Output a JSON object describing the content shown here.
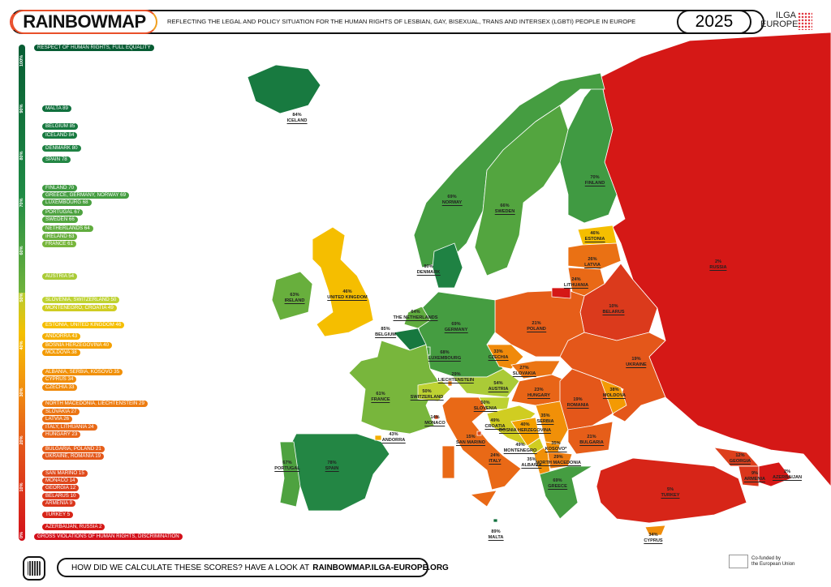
{
  "header": {
    "logo": "RAINBOWMAP",
    "tagline": "REFLECTING THE LEGAL AND POLICY SITUATION FOR THE HUMAN RIGHTS OF LESBIAN, GAY, BISEXUAL, TRANS AND INTERSEX (LGBTI) PEOPLE IN EUROPE",
    "year": "2025",
    "org_line1": "ILGA",
    "org_line2": "EUROPE"
  },
  "scale": {
    "ticks": [
      "100%",
      "90%",
      "80%",
      "70%",
      "60%",
      "50%",
      "40%",
      "30%",
      "20%",
      "10%",
      "0%"
    ],
    "top_label": "RESPECT OF HUMAN RIGHTS, FULL EQUALITY",
    "bottom_label": "GROSS VIOLATIONS OF HUMAN RIGHTS, DISCRIMINATION",
    "colors": {
      "top": "#075c33",
      "bottom": "#d3101a"
    }
  },
  "ranking": [
    {
      "label": "MALTA 89",
      "score": 89
    },
    {
      "label": "BELGIUM 85",
      "score": 85
    },
    {
      "label": "ICELAND 84",
      "score": 84
    },
    {
      "label": "DENMARK 80",
      "score": 80
    },
    {
      "label": "SPAIN 78",
      "score": 78
    },
    {
      "label": "FINLAND 70",
      "score": 70
    },
    {
      "label": "GREECE, GERMANY, NORWAY 69",
      "score": 69
    },
    {
      "label": "LUXEMBOURG 68",
      "score": 68
    },
    {
      "label": "PORTUGAL 67",
      "score": 67
    },
    {
      "label": "SWEDEN 66",
      "score": 66
    },
    {
      "label": "NETHERLANDS 64",
      "score": 64
    },
    {
      "label": "IRELAND 63",
      "score": 63
    },
    {
      "label": "FRANCE 61",
      "score": 61
    },
    {
      "label": "AUSTRIA 54",
      "score": 54
    },
    {
      "label": "SLOVENIA, SWITZERLAND 50",
      "score": 50
    },
    {
      "label": "MONTENEGRO, CROATIA 49",
      "score": 49
    },
    {
      "label": "ESTONIA, UNITED KINGDOM 46",
      "score": 46
    },
    {
      "label": "ANDORRA 43",
      "score": 43
    },
    {
      "label": "BOSNIA HERZEGOVINA 40",
      "score": 40
    },
    {
      "label": "MOLDOVA 38",
      "score": 38
    },
    {
      "label": "ALBANIA, SERBIA, KOSOVO 35",
      "score": 35
    },
    {
      "label": "CYPRUS 34",
      "score": 34
    },
    {
      "label": "CZECHIA 33",
      "score": 33
    },
    {
      "label": "NORTH MACEDONIA, LIECHTENSTEIN 29",
      "score": 29
    },
    {
      "label": "SLOVAKIA 27",
      "score": 27
    },
    {
      "label": "LATVIA 26",
      "score": 26
    },
    {
      "label": "ITALY, LITHUANIA 24",
      "score": 24
    },
    {
      "label": "HUNGARY 23",
      "score": 23
    },
    {
      "label": "BULGARIA, POLAND 21",
      "score": 21
    },
    {
      "label": "UKRAINE, ROMANIA 19",
      "score": 19
    },
    {
      "label": "SAN MARINO 15",
      "score": 15
    },
    {
      "label": "MONACO 14",
      "score": 14
    },
    {
      "label": "GEORGIA 12",
      "score": 12
    },
    {
      "label": "BELARUS 10",
      "score": 10
    },
    {
      "label": "ARMENIA 9",
      "score": 9
    },
    {
      "label": "TURKEY 5",
      "score": 5
    },
    {
      "label": "AZERBAIJAN, RUSSIA 2",
      "score": 2
    }
  ],
  "countries": {
    "iceland": {
      "name": "ICELAND",
      "pct": "84%",
      "score": 84
    },
    "norway": {
      "name": "NORWAY",
      "pct": "69%",
      "score": 69
    },
    "sweden": {
      "name": "SWEDEN",
      "pct": "66%",
      "score": 66
    },
    "finland": {
      "name": "FINLAND",
      "pct": "70%",
      "score": 70
    },
    "estonia": {
      "name": "ESTONIA",
      "pct": "46%",
      "score": 46
    },
    "latvia": {
      "name": "LATVIA",
      "pct": "26%",
      "score": 26
    },
    "lithuania": {
      "name": "LITHUANIA",
      "pct": "24%",
      "score": 24
    },
    "russia": {
      "name": "RUSSIA",
      "pct": "2%",
      "score": 2
    },
    "belarus": {
      "name": "BELARUS",
      "pct": "10%",
      "score": 10
    },
    "denmark": {
      "name": "DENMARK",
      "pct": "80%",
      "score": 80
    },
    "uk": {
      "name": "UNITED KINGDOM",
      "pct": "46%",
      "score": 46
    },
    "ireland": {
      "name": "IRELAND",
      "pct": "63%",
      "score": 63
    },
    "netherlands": {
      "name": "THE NETHERLANDS",
      "pct": "64%",
      "score": 64
    },
    "belgium": {
      "name": "BELGIUM",
      "pct": "85%",
      "score": 85
    },
    "germany": {
      "name": "GERMANY",
      "pct": "69%",
      "score": 69
    },
    "luxembourg": {
      "name": "LUXEMBOURG",
      "pct": "68%",
      "score": 68
    },
    "poland": {
      "name": "POLAND",
      "pct": "21%",
      "score": 21
    },
    "ukraine": {
      "name": "UKRAINE",
      "pct": "19%",
      "score": 19
    },
    "czechia": {
      "name": "CZECHIA",
      "pct": "33%",
      "score": 33
    },
    "slovakia": {
      "name": "SLOVAKIA",
      "pct": "27%",
      "score": 27
    },
    "france": {
      "name": "FRANCE",
      "pct": "61%",
      "score": 61
    },
    "switzerland": {
      "name": "SWITZERLAND",
      "pct": "50%",
      "score": 50
    },
    "liechtenstein": {
      "name": "LIECHTENSTEIN",
      "pct": "29%",
      "score": 29
    },
    "austria": {
      "name": "AUSTRIA",
      "pct": "54%",
      "score": 54
    },
    "hungary": {
      "name": "HUNGARY",
      "pct": "23%",
      "score": 23
    },
    "slovenia": {
      "name": "SLOVENIA",
      "pct": "50%",
      "score": 50
    },
    "moldova": {
      "name": "MOLDOVA",
      "pct": "38%",
      "score": 38
    },
    "romania": {
      "name": "ROMANIA",
      "pct": "19%",
      "score": 19
    },
    "monaco": {
      "name": "MONACO",
      "pct": "14%",
      "score": 14
    },
    "croatia": {
      "name": "CROATIA",
      "pct": "49%",
      "score": 49
    },
    "bosnia": {
      "name": "BOSNIA HERZEGOVINA",
      "pct": "40%",
      "score": 40
    },
    "serbia": {
      "name": "SERBIA",
      "pct": "35%",
      "score": 35
    },
    "andorra": {
      "name": "ANDORRA",
      "pct": "43%",
      "score": 43
    },
    "sanmarino": {
      "name": "SAN MARINO",
      "pct": "15%",
      "score": 15
    },
    "montenegro": {
      "name": "MONTENEGRO",
      "pct": "49%",
      "score": 49
    },
    "kosovo": {
      "name": "KOSOVO*",
      "pct": "35%",
      "score": 35
    },
    "bulgaria": {
      "name": "BULGARIA",
      "pct": "21%",
      "score": 21
    },
    "italy": {
      "name": "ITALY",
      "pct": "24%",
      "score": 24
    },
    "albania": {
      "name": "ALBANIA",
      "pct": "35%",
      "score": 35
    },
    "northmacedonia": {
      "name": "NORTH MACEDONIA",
      "pct": "29%",
      "score": 29
    },
    "georgia": {
      "name": "GEORGIA",
      "pct": "12%",
      "score": 12
    },
    "armenia": {
      "name": "ARMENIA",
      "pct": "9%",
      "score": 9
    },
    "azerbaijan": {
      "name": "AZERBAIJAN",
      "pct": "2%",
      "score": 2
    },
    "turkey": {
      "name": "TURKEY",
      "pct": "5%",
      "score": 5
    },
    "portugal": {
      "name": "PORTUGAL",
      "pct": "67%",
      "score": 67
    },
    "spain": {
      "name": "SPAIN",
      "pct": "78%",
      "score": 78
    },
    "greece": {
      "name": "GREECE",
      "pct": "69%",
      "score": 69
    },
    "malta": {
      "name": "MALTA",
      "pct": "89%",
      "score": 89
    },
    "cyprus": {
      "name": "CYPRUS",
      "pct": "34%",
      "score": 34
    }
  },
  "footer": {
    "text": "HOW DID WE CALCULATE THESE SCORES? HAVE A LOOK AT",
    "link": "RAINBOWMAP.ILGA-EUROPE.ORG",
    "eu_line1": "Co-funded by",
    "eu_line2": "the European Union"
  }
}
